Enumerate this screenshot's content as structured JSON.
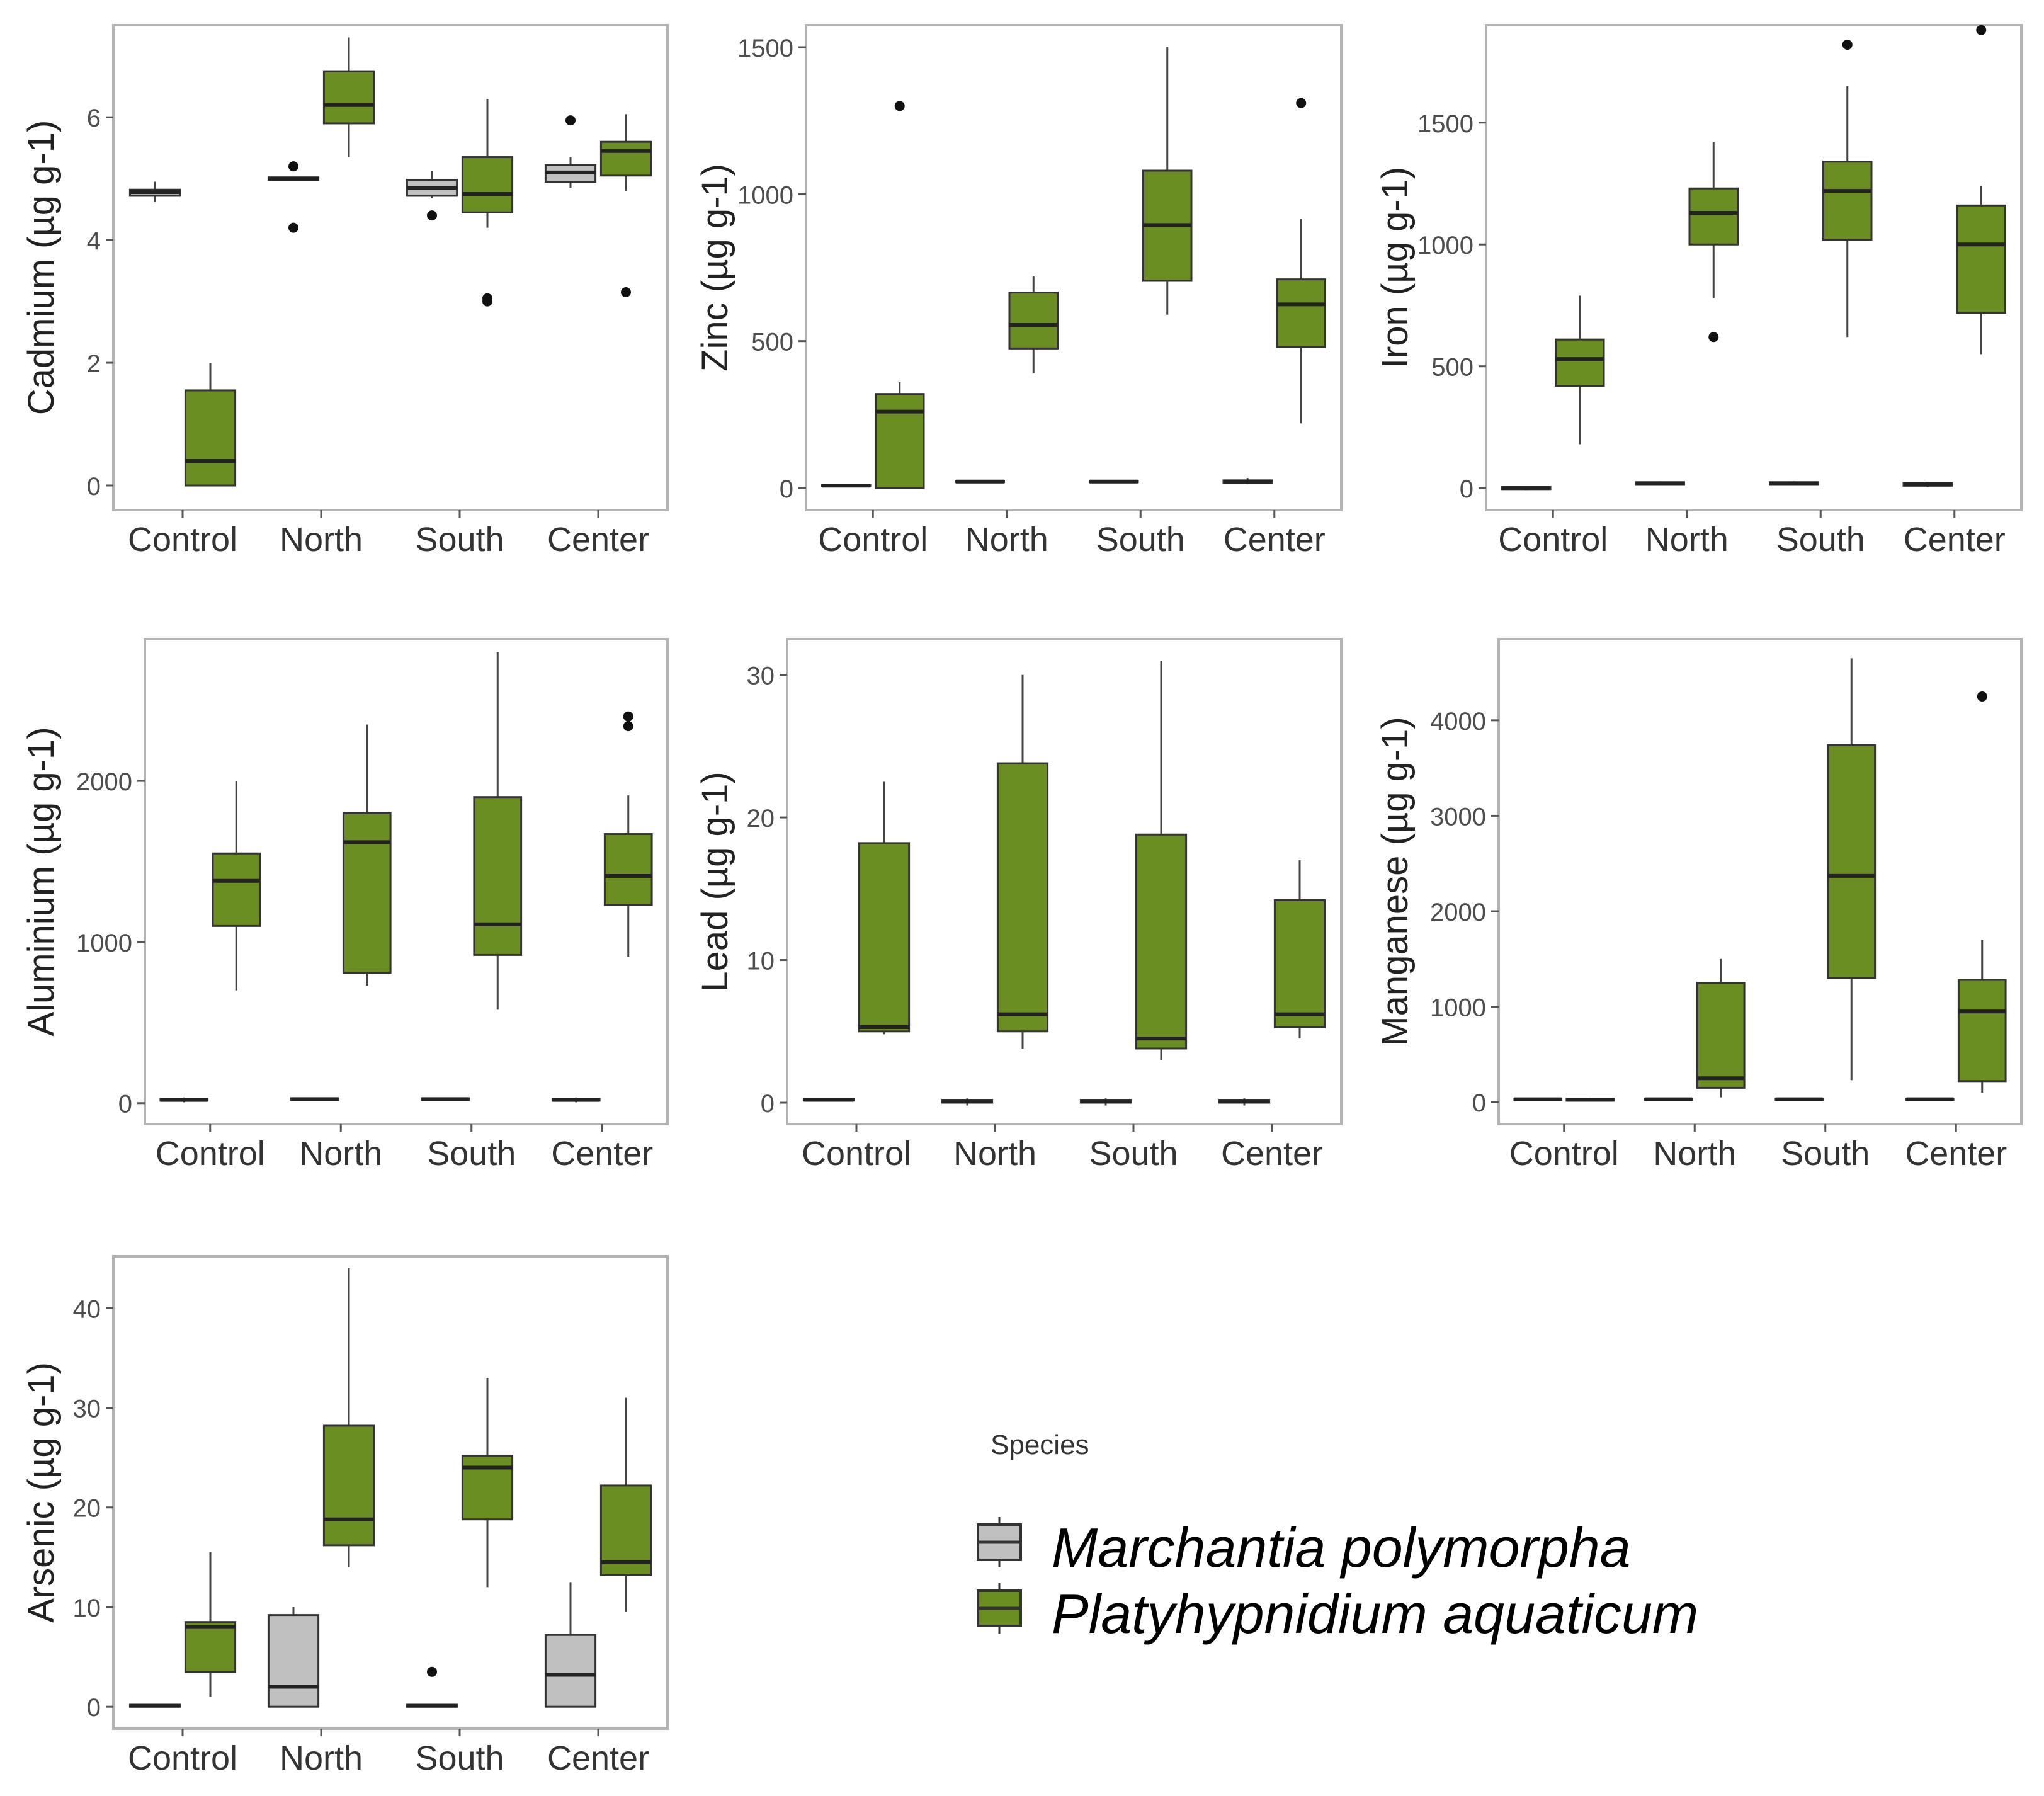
{
  "chart_data": [
    {
      "type": "boxplot",
      "ylabel": "Cadmium (µg g-1)",
      "categories": [
        "Control",
        "North",
        "South",
        "Center"
      ],
      "ylim": [
        -0.4,
        7.5
      ],
      "yticks": [
        0,
        2,
        4,
        6
      ],
      "series": [
        {
          "name": "Marchantia polymorpha",
          "boxes": [
            {
              "min": 4.62,
              "q1": 4.72,
              "median": 4.78,
              "q3": 4.82,
              "max": 4.95,
              "outliers": []
            },
            {
              "min": 4.98,
              "q1": 4.98,
              "median": 5.0,
              "q3": 5.02,
              "max": 5.02,
              "outliers": [
                4.2,
                5.2
              ]
            },
            {
              "min": 4.68,
              "q1": 4.72,
              "median": 4.85,
              "q3": 4.98,
              "max": 5.12,
              "outliers": [
                4.4
              ]
            },
            {
              "min": 4.85,
              "q1": 4.95,
              "median": 5.1,
              "q3": 5.22,
              "max": 5.35,
              "outliers": [
                5.95
              ]
            }
          ]
        },
        {
          "name": "Platyhypnidium aquaticum",
          "boxes": [
            {
              "min": 0.0,
              "q1": 0.0,
              "median": 0.4,
              "q3": 1.55,
              "max": 2.0,
              "outliers": []
            },
            {
              "min": 5.35,
              "q1": 5.9,
              "median": 6.2,
              "q3": 6.75,
              "max": 7.3,
              "outliers": []
            },
            {
              "min": 4.2,
              "q1": 4.45,
              "median": 4.75,
              "q3": 5.35,
              "max": 6.3,
              "outliers": [
                3.0,
                3.05
              ]
            },
            {
              "min": 4.8,
              "q1": 5.05,
              "median": 5.45,
              "q3": 5.6,
              "max": 6.05,
              "outliers": [
                3.15
              ]
            }
          ]
        }
      ]
    },
    {
      "type": "boxplot",
      "ylabel": "Zinc (µg g-1)",
      "categories": [
        "Control",
        "North",
        "South",
        "Center"
      ],
      "ylim": [
        -75,
        1575
      ],
      "yticks": [
        0,
        500,
        1000,
        1500
      ],
      "series": [
        {
          "name": "Marchantia polymorpha",
          "boxes": [
            {
              "min": 4,
              "q1": 6,
              "median": 8,
              "q3": 10,
              "max": 12,
              "outliers": []
            },
            {
              "min": 18,
              "q1": 20,
              "median": 22,
              "q3": 24,
              "max": 26,
              "outliers": []
            },
            {
              "min": 18,
              "q1": 20,
              "median": 22,
              "q3": 24,
              "max": 26,
              "outliers": []
            },
            {
              "min": 14,
              "q1": 18,
              "median": 22,
              "q3": 26,
              "max": 34,
              "outliers": []
            }
          ]
        },
        {
          "name": "Platyhypnidium aquaticum",
          "boxes": [
            {
              "min": 0,
              "q1": 0,
              "median": 260,
              "q3": 320,
              "max": 360,
              "outliers": [
                1300
              ]
            },
            {
              "min": 390,
              "q1": 475,
              "median": 555,
              "q3": 665,
              "max": 720,
              "outliers": []
            },
            {
              "min": 590,
              "q1": 705,
              "median": 895,
              "q3": 1080,
              "max": 1500,
              "outliers": []
            },
            {
              "min": 220,
              "q1": 480,
              "median": 625,
              "q3": 710,
              "max": 915,
              "outliers": [
                1310
              ]
            }
          ]
        }
      ]
    },
    {
      "type": "boxplot",
      "ylabel": "Iron (µg g-1)",
      "categories": [
        "Control",
        "North",
        "South",
        "Center"
      ],
      "ylim": [
        -90,
        1900
      ],
      "yticks": [
        0,
        500,
        1000,
        1500
      ],
      "series": [
        {
          "name": "Marchantia polymorpha",
          "boxes": [
            {
              "min": -8,
              "q1": -4,
              "median": 0,
              "q3": 4,
              "max": 8,
              "outliers": []
            },
            {
              "min": 12,
              "q1": 16,
              "median": 20,
              "q3": 24,
              "max": 28,
              "outliers": []
            },
            {
              "min": 12,
              "q1": 16,
              "median": 20,
              "q3": 24,
              "max": 28,
              "outliers": []
            },
            {
              "min": 5,
              "q1": 10,
              "median": 15,
              "q3": 20,
              "max": 25,
              "outliers": []
            }
          ]
        },
        {
          "name": "Platyhypnidium aquaticum",
          "boxes": [
            {
              "min": 180,
              "q1": 420,
              "median": 530,
              "q3": 610,
              "max": 790,
              "outliers": []
            },
            {
              "min": 780,
              "q1": 1000,
              "median": 1130,
              "q3": 1230,
              "max": 1420,
              "outliers": [
                620
              ]
            },
            {
              "min": 620,
              "q1": 1020,
              "median": 1220,
              "q3": 1340,
              "max": 1650,
              "outliers": [
                1820
              ]
            },
            {
              "min": 550,
              "q1": 720,
              "median": 1000,
              "q3": 1160,
              "max": 1240,
              "outliers": [
                1880
              ]
            }
          ]
        }
      ]
    },
    {
      "type": "boxplot",
      "ylabel": "Aluminium (µg g-1)",
      "categories": [
        "Control",
        "North",
        "South",
        "Center"
      ],
      "ylim": [
        -130,
        2880
      ],
      "yticks": [
        0,
        1000,
        2000
      ],
      "series": [
        {
          "name": "Marchantia polymorpha",
          "boxes": [
            {
              "min": 5,
              "q1": 15,
              "median": 20,
              "q3": 25,
              "max": 35,
              "outliers": []
            },
            {
              "min": 15,
              "q1": 20,
              "median": 25,
              "q3": 30,
              "max": 35,
              "outliers": []
            },
            {
              "min": 15,
              "q1": 20,
              "median": 25,
              "q3": 30,
              "max": 35,
              "outliers": []
            },
            {
              "min": 5,
              "q1": 15,
              "median": 20,
              "q3": 25,
              "max": 35,
              "outliers": []
            }
          ]
        },
        {
          "name": "Platyhypnidium aquaticum",
          "boxes": [
            {
              "min": 700,
              "q1": 1100,
              "median": 1380,
              "q3": 1550,
              "max": 2000,
              "outliers": []
            },
            {
              "min": 730,
              "q1": 810,
              "median": 1620,
              "q3": 1800,
              "max": 2350,
              "outliers": []
            },
            {
              "min": 580,
              "q1": 920,
              "median": 1110,
              "q3": 1900,
              "max": 2800,
              "outliers": []
            },
            {
              "min": 910,
              "q1": 1230,
              "median": 1410,
              "q3": 1670,
              "max": 1910,
              "outliers": [
                2340,
                2400
              ]
            }
          ]
        }
      ]
    },
    {
      "type": "boxplot",
      "ylabel": "Lead (µg g-1)",
      "categories": [
        "Control",
        "North",
        "South",
        "Center"
      ],
      "ylim": [
        -1.5,
        32.5
      ],
      "yticks": [
        0,
        10,
        20,
        30
      ],
      "series": [
        {
          "name": "Marchantia polymorpha",
          "boxes": [
            {
              "min": 0.1,
              "q1": 0.15,
              "median": 0.2,
              "q3": 0.25,
              "max": 0.3,
              "outliers": []
            },
            {
              "min": -0.2,
              "q1": 0.0,
              "median": 0.1,
              "q3": 0.2,
              "max": 0.3,
              "outliers": []
            },
            {
              "min": -0.2,
              "q1": 0.0,
              "median": 0.1,
              "q3": 0.2,
              "max": 0.3,
              "outliers": []
            },
            {
              "min": -0.2,
              "q1": 0.0,
              "median": 0.1,
              "q3": 0.2,
              "max": 0.3,
              "outliers": []
            }
          ]
        },
        {
          "name": "Platyhypnidium aquaticum",
          "boxes": [
            {
              "min": 4.8,
              "q1": 5.0,
              "median": 5.3,
              "q3": 18.2,
              "max": 22.5,
              "outliers": []
            },
            {
              "min": 3.8,
              "q1": 5.0,
              "median": 6.2,
              "q3": 23.8,
              "max": 30.0,
              "outliers": []
            },
            {
              "min": 3.0,
              "q1": 3.8,
              "median": 4.5,
              "q3": 18.8,
              "max": 31.0,
              "outliers": []
            },
            {
              "min": 4.5,
              "q1": 5.3,
              "median": 6.2,
              "q3": 14.2,
              "max": 17.0,
              "outliers": []
            }
          ]
        }
      ]
    },
    {
      "type": "boxplot",
      "ylabel": "Manganese (µg g-1)",
      "categories": [
        "Control",
        "North",
        "South",
        "Center"
      ],
      "ylim": [
        -230,
        4850
      ],
      "yticks": [
        0,
        1000,
        2000,
        3000,
        4000
      ],
      "series": [
        {
          "name": "Marchantia polymorpha",
          "boxes": [
            {
              "min": 20,
              "q1": 25,
              "median": 30,
              "q3": 35,
              "max": 40,
              "outliers": []
            },
            {
              "min": 20,
              "q1": 25,
              "median": 30,
              "q3": 35,
              "max": 40,
              "outliers": []
            },
            {
              "min": 20,
              "q1": 25,
              "median": 30,
              "q3": 35,
              "max": 40,
              "outliers": []
            },
            {
              "min": 20,
              "q1": 25,
              "median": 30,
              "q3": 35,
              "max": 40,
              "outliers": []
            }
          ]
        },
        {
          "name": "Platyhypnidium aquaticum",
          "boxes": [
            {
              "min": 5,
              "q1": 15,
              "median": 25,
              "q3": 35,
              "max": 45,
              "outliers": []
            },
            {
              "min": 50,
              "q1": 150,
              "median": 250,
              "q3": 1250,
              "max": 1500,
              "outliers": []
            },
            {
              "min": 230,
              "q1": 1300,
              "median": 2370,
              "q3": 3740,
              "max": 4650,
              "outliers": []
            },
            {
              "min": 100,
              "q1": 220,
              "median": 950,
              "q3": 1280,
              "max": 1700,
              "outliers": [
                4250
              ]
            }
          ]
        }
      ]
    },
    {
      "type": "boxplot",
      "ylabel": "Arsenic (µg g-1)",
      "categories": [
        "Control",
        "North",
        "South",
        "Center"
      ],
      "ylim": [
        -2.2,
        45.2
      ],
      "yticks": [
        0,
        10,
        20,
        30,
        40
      ],
      "series": [
        {
          "name": "Marchantia polymorpha",
          "boxes": [
            {
              "min": 0.0,
              "q1": 0.0,
              "median": 0.1,
              "q3": 0.2,
              "max": 0.2,
              "outliers": []
            },
            {
              "min": 0.0,
              "q1": 0.0,
              "median": 2.0,
              "q3": 9.2,
              "max": 10.0,
              "outliers": []
            },
            {
              "min": 0.0,
              "q1": 0.0,
              "median": 0.1,
              "q3": 0.2,
              "max": 0.2,
              "outliers": [
                3.5
              ]
            },
            {
              "min": 0.0,
              "q1": 0.0,
              "median": 3.2,
              "q3": 7.2,
              "max": 12.5,
              "outliers": []
            }
          ]
        },
        {
          "name": "Platyhypnidium aquaticum",
          "boxes": [
            {
              "min": 1.0,
              "q1": 3.5,
              "median": 8.0,
              "q3": 8.5,
              "max": 15.5,
              "outliers": []
            },
            {
              "min": 14.0,
              "q1": 16.2,
              "median": 18.8,
              "q3": 28.2,
              "max": 44.0,
              "outliers": []
            },
            {
              "min": 12.0,
              "q1": 18.8,
              "median": 24.0,
              "q3": 25.2,
              "max": 33.0,
              "outliers": []
            },
            {
              "min": 9.5,
              "q1": 13.2,
              "median": 14.5,
              "q3": 22.2,
              "max": 31.0,
              "outliers": []
            }
          ]
        }
      ]
    }
  ],
  "legend": {
    "title": "Species",
    "entries": [
      "Marchantia polymorpha",
      "Platyhypnidium aquaticum"
    ]
  },
  "colors": {
    "Marchantia polymorpha": "#c0c0c0",
    "Platyhypnidium aquaticum": "#6b8e23",
    "outline": "#333333",
    "frame": "#b3b3b3",
    "tick_text": "#4d4d4d"
  }
}
